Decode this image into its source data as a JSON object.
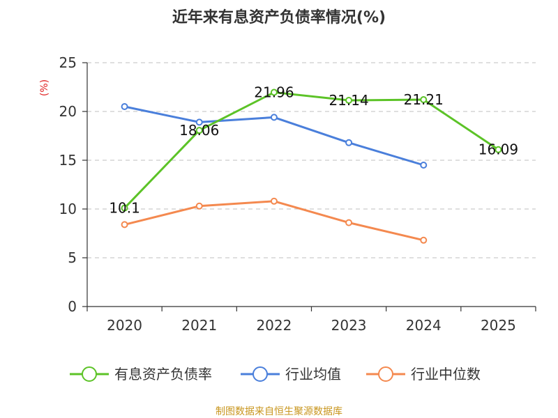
{
  "chart_data": {
    "type": "line",
    "title": "近年来有息资产负债率情况(%)",
    "ylabel": "(%)",
    "xlabel": "",
    "categories": [
      "2020",
      "2021",
      "2022",
      "2023",
      "2024",
      "2025"
    ],
    "ylim": [
      0,
      25
    ],
    "yticks": [
      0,
      5,
      10,
      15,
      20,
      25
    ],
    "grid": true,
    "legend_position": "bottom",
    "series": [
      {
        "name": "有息资产负债率",
        "color": "#5cc327",
        "values": [
          10.1,
          18.06,
          21.96,
          21.14,
          21.21,
          16.09
        ],
        "show_labels": true
      },
      {
        "name": "行业均值",
        "color": "#4a7fdb",
        "values": [
          20.5,
          18.9,
          19.4,
          16.8,
          14.5,
          null
        ],
        "show_labels": false
      },
      {
        "name": "行业中位数",
        "color": "#f4894f",
        "values": [
          8.4,
          10.3,
          10.8,
          8.6,
          6.8,
          null
        ],
        "show_labels": false
      }
    ],
    "source": "制图数据来自恒生聚源数据库"
  }
}
